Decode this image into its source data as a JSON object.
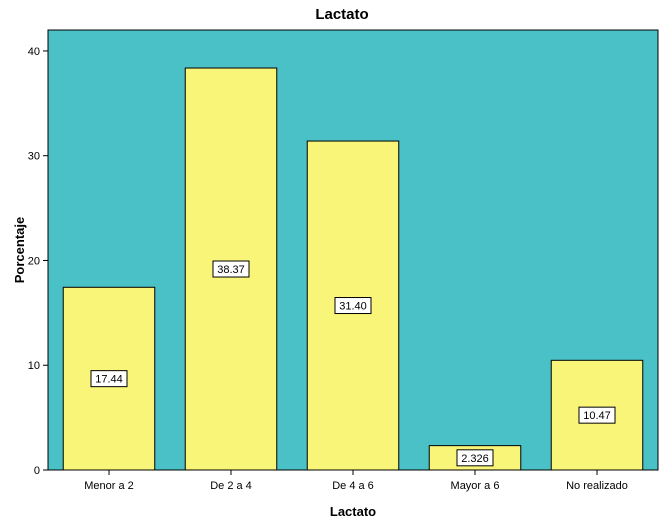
{
  "chart_data": {
    "type": "bar",
    "title": "Lactato",
    "xlabel": "Lactato",
    "ylabel": "Porcentaje",
    "categories": [
      "Menor a 2",
      "De 2 a 4",
      "De 4 a 6",
      "Mayor a 6",
      "No realizado"
    ],
    "values": [
      17.44,
      38.37,
      31.4,
      2.326,
      10.47
    ],
    "value_labels": [
      "17.44",
      "38.37",
      "31.40",
      "2.326",
      "10.47"
    ],
    "yticks": [
      0,
      10,
      20,
      30,
      40
    ],
    "ylim": [
      0,
      42
    ],
    "grid": false,
    "legend": "none",
    "colors": {
      "plot_background": "#4AC1C6",
      "bar_fill": "#F9F578",
      "bar_stroke": "#000000",
      "label_box_fill": "#FFFFFF"
    }
  }
}
